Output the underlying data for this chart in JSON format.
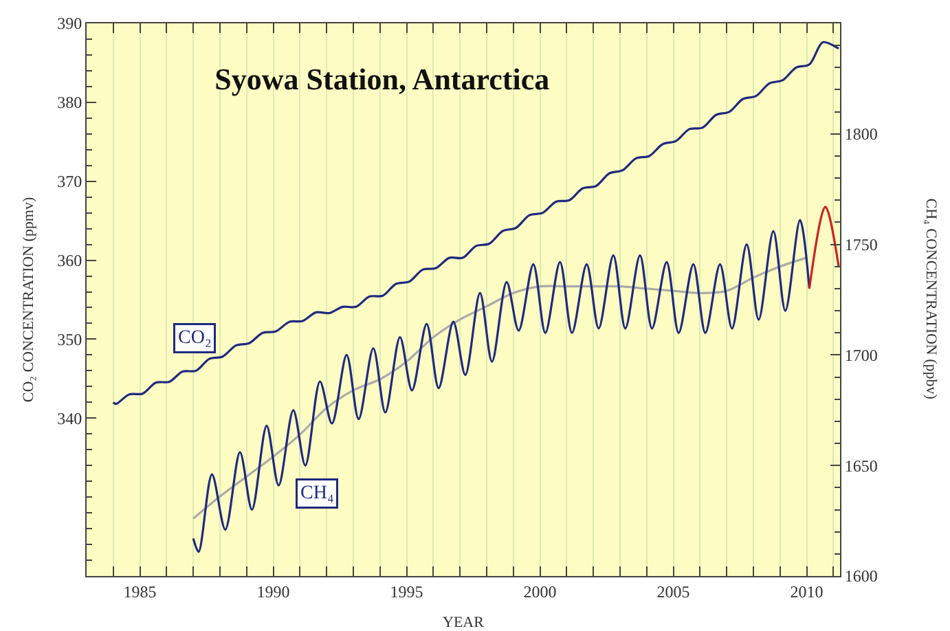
{
  "chart_data": {
    "type": "line",
    "title": "Syowa Station, Antarctica",
    "xlabel": "YEAR",
    "ylabel": "CO₂ CONCENTRATION (ppmv)",
    "y2label": "CH₄ CONCENTRATION (ppbv)",
    "xlim": [
      1983,
      2011.25
    ],
    "xticks": [
      {
        "value": 1984,
        "label": null
      },
      1985,
      {
        "value": 1986,
        "label": null
      },
      {
        "value": 1987,
        "label": null
      },
      {
        "value": 1988,
        "label": null
      },
      {
        "value": 1989,
        "label": null
      },
      1990,
      {
        "value": 1991,
        "label": null
      },
      {
        "value": 1992,
        "label": null
      },
      {
        "value": 1993,
        "label": null
      },
      {
        "value": 1994,
        "label": null
      },
      1995,
      {
        "value": 1996,
        "label": null
      },
      {
        "value": 1997,
        "label": null
      },
      {
        "value": 1998,
        "label": null
      },
      {
        "value": 1999,
        "label": null
      },
      2000,
      {
        "value": 2001,
        "label": null
      },
      {
        "value": 2002,
        "label": null
      },
      {
        "value": 2003,
        "label": null
      },
      {
        "value": 2004,
        "label": null
      },
      2005,
      {
        "value": 2006,
        "label": null
      },
      {
        "value": 2007,
        "label": null
      },
      {
        "value": 2008,
        "label": null
      },
      {
        "value": 2009,
        "label": null
      },
      2010,
      {
        "value": 2011,
        "label": null
      }
    ],
    "ylim": [
      320,
      390
    ],
    "yticks": [
      340,
      350,
      360,
      370,
      380,
      390
    ],
    "y2lim": [
      1600,
      1850
    ],
    "y2ticks": [
      1600,
      1650,
      1700,
      1750,
      1800
    ],
    "grid": "x",
    "marker": "none",
    "line_style": "solid",
    "annotations": [
      "CO₂",
      "CH₄"
    ],
    "series": [
      {
        "color": "#1f2a80",
        "x": [
          1984.0,
          1984.1,
          1984.6,
          1985.1,
          1985.6,
          1986.1,
          1986.6,
          1987.1,
          1987.6,
          1988.1,
          1988.6,
          1989.1,
          1989.6,
          1990.1,
          1990.6,
          1991.1,
          1991.6,
          1992.1,
          1992.6,
          1993.1,
          1993.6,
          1994.1,
          1994.6,
          1995.1,
          1995.6,
          1996.1,
          1996.6,
          1997.1,
          1997.6,
          1998.1,
          1998.6,
          1999.1,
          1999.6,
          2000.1,
          2000.6,
          2001.1,
          2001.6,
          2002.1,
          2002.6,
          2003.1,
          2003.6,
          2004.1,
          2004.6,
          2005.1,
          2005.6,
          2006.1,
          2006.6,
          2007.1,
          2007.6,
          2008.1,
          2008.6,
          2009.1,
          2009.6,
          2010.1,
          2010.6,
          2011.0,
          2011.2
        ],
        "values": [
          342.0,
          341.8,
          343.0,
          343.1,
          344.5,
          344.6,
          345.9,
          346.0,
          347.5,
          347.8,
          349.2,
          349.5,
          350.8,
          351.0,
          352.2,
          352.3,
          353.4,
          353.3,
          354.1,
          354.1,
          355.4,
          355.5,
          357.0,
          357.3,
          358.8,
          359.0,
          360.3,
          360.3,
          361.8,
          362.1,
          363.7,
          364.1,
          365.7,
          366.0,
          367.4,
          367.6,
          369.1,
          369.4,
          371.0,
          371.4,
          372.9,
          373.2,
          374.7,
          375.1,
          376.6,
          376.8,
          378.4,
          378.8,
          380.4,
          380.8,
          382.4,
          382.8,
          384.4,
          384.8,
          387.6,
          387.2,
          386.8
        ]
      },
      {
        "color": "#aaaaaa",
        "axis": "y2",
        "x": [
          1987,
          1988,
          1989,
          1990,
          1991,
          1992,
          1993,
          1994,
          1995,
          1996,
          1997,
          1998,
          1999,
          2000,
          2001,
          2002,
          2003,
          2004,
          2005,
          2006,
          2007,
          2008,
          2009,
          2010
        ],
        "values": [
          1626,
          1636,
          1645,
          1654,
          1664,
          1676,
          1684,
          1689,
          1697,
          1708,
          1716,
          1722,
          1728,
          1731,
          1731,
          1731,
          1731,
          1730,
          1729,
          1728,
          1729,
          1735,
          1740,
          1744
        ]
      },
      {
        "color": "#1f2a80",
        "axis": "y2",
        "x": [
          1987.0,
          1987.2,
          1987.7,
          1988.2,
          1988.75,
          1989.2,
          1989.75,
          1990.2,
          1990.75,
          1991.2,
          1991.75,
          1992.2,
          1992.75,
          1993.2,
          1993.75,
          1994.2,
          1994.75,
          1995.2,
          1995.75,
          1996.2,
          1996.75,
          1997.2,
          1997.75,
          1998.2,
          1998.75,
          1999.2,
          1999.75,
          2000.2,
          2000.75,
          2001.2,
          2001.75,
          2002.2,
          2002.75,
          2003.2,
          2003.75,
          2004.2,
          2004.75,
          2005.2,
          2005.75,
          2006.2,
          2006.75,
          2007.2,
          2007.75,
          2008.2,
          2008.75,
          2009.2,
          2009.75,
          2010.1
        ],
        "values": [
          1617,
          1611,
          1646,
          1621,
          1656,
          1630,
          1668,
          1641,
          1675,
          1650,
          1688,
          1669,
          1700,
          1671,
          1703,
          1674,
          1708,
          1684,
          1714,
          1685,
          1715,
          1691,
          1728,
          1697,
          1733,
          1711,
          1741,
          1710,
          1742,
          1710,
          1741,
          1712,
          1745,
          1712,
          1745,
          1712,
          1742,
          1710,
          1741,
          1710,
          1741,
          1712,
          1750,
          1716,
          1756,
          1720,
          1761,
          1730
        ]
      },
      {
        "color": "#cc2222",
        "axis": "y2",
        "x": [
          2010.1,
          2010.7,
          2011.2
        ],
        "values": [
          1730,
          1767,
          1740
        ]
      }
    ]
  }
}
